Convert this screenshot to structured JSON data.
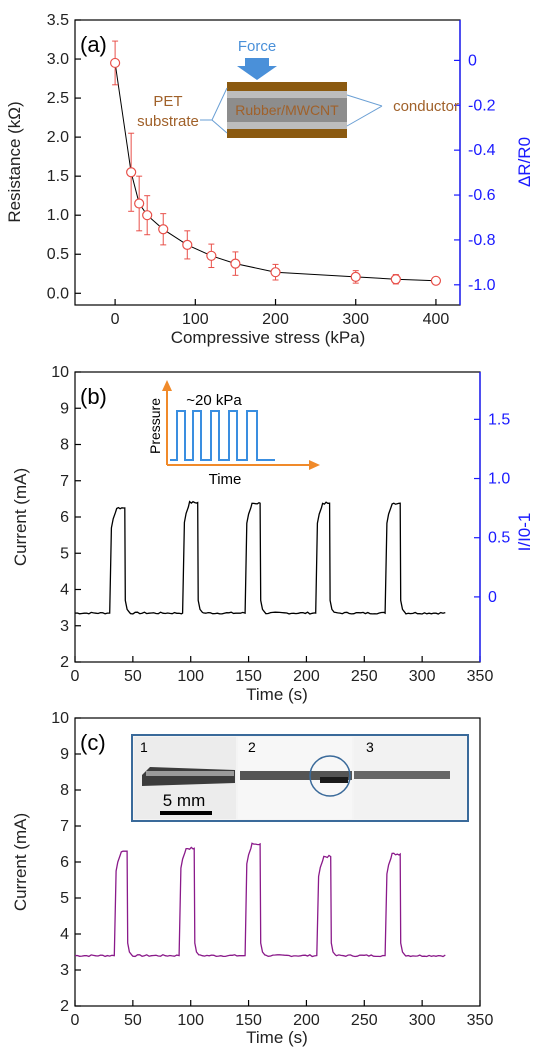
{
  "colors": {
    "panel_a_data": "#e8504a",
    "panel_a_line": "#000000",
    "panel_b_line": "#000000",
    "panel_c_line": "#8a1a8a",
    "right_axis": "#1a1aff",
    "inset_pressure": "#3a8ee0",
    "inset_axes": "#f08a2a",
    "layer_brown": "#8b5a10",
    "layer_gray": "#8d8d8d",
    "annotation_text": "#a0612a",
    "force_arrow": "#4a90d9"
  },
  "chart_data": [
    {
      "type": "scatter",
      "panel_label": "(a)",
      "xlabel": "Compressive stress  (kPa)",
      "ylabel": "Resistance (kΩ)",
      "y2label": "ΔR/R0",
      "xlim": [
        -50,
        430
      ],
      "ylim": [
        -0.15,
        3.5
      ],
      "y2lim": [
        -1.09,
        0.18
      ],
      "x_ticks": [
        "0",
        "100",
        "200",
        "300",
        "400"
      ],
      "x_tick_values": [
        0,
        100,
        200,
        300,
        400
      ],
      "y_ticks": [
        "0.0",
        "0.5",
        "1.0",
        "1.5",
        "2.0",
        "2.5",
        "3.0",
        "3.5"
      ],
      "y_tick_values": [
        0,
        0.5,
        1,
        1.5,
        2,
        2.5,
        3,
        3.5
      ],
      "y2_ticks": [
        "0",
        "-0.2",
        "-0.4",
        "-0.6",
        "-0.8",
        "-1.0"
      ],
      "y2_tick_values": [
        0,
        -0.2,
        -0.4,
        -0.6,
        -0.8,
        -1.0
      ],
      "x": [
        0,
        20,
        30,
        40,
        60,
        90,
        120,
        150,
        200,
        300,
        350,
        400
      ],
      "y": [
        2.95,
        1.55,
        1.15,
        1.0,
        0.82,
        0.62,
        0.48,
        0.38,
        0.27,
        0.21,
        0.18,
        0.16
      ],
      "err": [
        0.28,
        0.5,
        0.35,
        0.25,
        0.2,
        0.18,
        0.15,
        0.15,
        0.1,
        0.08,
        0.06,
        0.04
      ],
      "inset": {
        "force_label": "Force",
        "middle_label": "Rubber/MWCNT",
        "left_label_1": "PET",
        "left_label_2": "substrate",
        "right_label": "conductor"
      }
    },
    {
      "type": "line",
      "panel_label": "(b)",
      "xlabel": "Time (s)",
      "ylabel": "Current (mA)",
      "y2label": "I/I0-1",
      "xlim": [
        0,
        350
      ],
      "ylim": [
        2,
        10
      ],
      "y2lim": [
        -0.55,
        1.9
      ],
      "x_ticks": [
        "0",
        "50",
        "100",
        "150",
        "200",
        "250",
        "300",
        "350"
      ],
      "x_tick_values": [
        0,
        50,
        100,
        150,
        200,
        250,
        300,
        350
      ],
      "y_ticks": [
        "2",
        "3",
        "4",
        "5",
        "6",
        "7",
        "8",
        "9",
        "10"
      ],
      "y_tick_values": [
        2,
        3,
        4,
        5,
        6,
        7,
        8,
        9,
        10
      ],
      "y2_ticks": [
        "0",
        "0.5",
        "1.0",
        "1.5"
      ],
      "y2_tick_values": [
        0,
        0.5,
        1.0,
        1.5
      ],
      "baseline": 3.35,
      "pulses": [
        {
          "start": 30,
          "end": 43,
          "peak": 6.25
        },
        {
          "start": 93,
          "end": 106,
          "peak": 6.4
        },
        {
          "start": 147,
          "end": 160,
          "peak": 6.38
        },
        {
          "start": 208,
          "end": 220,
          "peak": 6.38
        },
        {
          "start": 268,
          "end": 281,
          "peak": 6.38
        }
      ],
      "t_end": 320,
      "inset": {
        "label": "~20 kPa",
        "ylabel": "Pressure",
        "xlabel": "Time"
      }
    },
    {
      "type": "line",
      "panel_label": "(c)",
      "xlabel": "Time (s)",
      "ylabel": "Current (mA)",
      "xlim": [
        0,
        350
      ],
      "ylim": [
        2,
        10
      ],
      "x_ticks": [
        "0",
        "50",
        "100",
        "150",
        "200",
        "250",
        "300",
        "350"
      ],
      "x_tick_values": [
        0,
        50,
        100,
        150,
        200,
        250,
        300,
        350
      ],
      "y_ticks": [
        "2",
        "3",
        "4",
        "5",
        "6",
        "7",
        "8",
        "9",
        "10"
      ],
      "y_tick_values": [
        2,
        3,
        4,
        5,
        6,
        7,
        8,
        9,
        10
      ],
      "baseline": 3.4,
      "pulses": [
        {
          "start": 34,
          "end": 45,
          "peak": 6.3
        },
        {
          "start": 90,
          "end": 103,
          "peak": 6.38
        },
        {
          "start": 147,
          "end": 160,
          "peak": 6.5
        },
        {
          "start": 209,
          "end": 221,
          "peak": 6.15
        },
        {
          "start": 268,
          "end": 281,
          "peak": 6.22
        }
      ],
      "t_end": 320,
      "inset": {
        "photo_labels": [
          "1",
          "2",
          "3"
        ],
        "scale_label": "5 mm"
      }
    }
  ]
}
